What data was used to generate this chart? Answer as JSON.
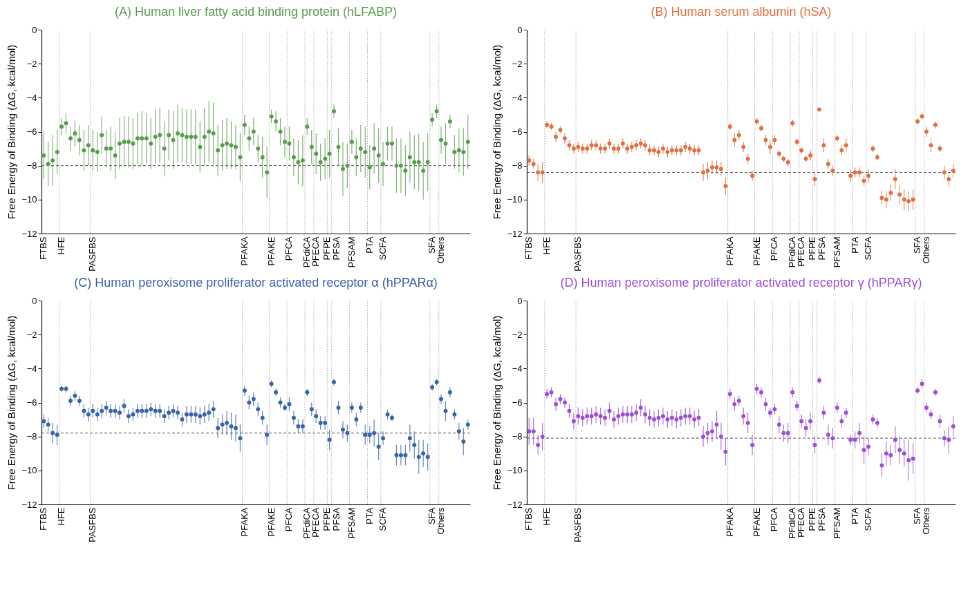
{
  "chart_data": [
    {
      "type": "scatter",
      "title": "(A) Human liver fatty acid binding protein (hLFABP)",
      "ylabel": "Free Energy of Binding (ΔG, kcal/mol)",
      "categories": [
        "FTBS",
        null,
        null,
        null,
        "HFE",
        null,
        null,
        null,
        null,
        null,
        null,
        "PASFBS",
        null,
        null,
        null,
        null,
        null,
        null,
        null,
        null,
        null,
        null,
        null,
        null,
        null,
        null,
        null,
        null,
        null,
        null,
        null,
        null,
        null,
        null,
        null,
        null,
        null,
        null,
        null,
        null,
        null,
        null,
        null,
        null,
        null,
        "PFAKA",
        null,
        null,
        null,
        null,
        null,
        "PFAKE",
        null,
        null,
        null,
        "PFCA",
        null,
        null,
        null,
        "PFdiCA",
        null,
        "PFECA",
        null,
        null,
        "PFPE",
        "PFSA",
        null,
        null,
        null,
        "PFSAM",
        null,
        null,
        null,
        "PTA",
        null,
        null,
        "SCFA",
        null,
        null,
        null,
        null,
        null,
        null,
        null,
        null,
        null,
        null,
        "SFA",
        null,
        "Others",
        null,
        null,
        null,
        null,
        null,
        null
      ],
      "series": [
        {
          "color": "#5b9b4f",
          "values": [
            -7.4,
            -7.9,
            -7.7,
            -7.2,
            -5.7,
            -5.5,
            -6.4,
            -6.1,
            -6.5,
            -7.1,
            -6.8,
            -7.1,
            -7.2,
            -6.2,
            -7.0,
            -7.0,
            -7.4,
            -6.7,
            -6.6,
            -6.6,
            -6.7,
            -6.4,
            -6.4,
            -6.4,
            -6.7,
            -6.3,
            -6.2,
            -7.0,
            -6.2,
            -6.5,
            -6.1,
            -6.2,
            -6.3,
            -6.3,
            -6.3,
            -6.9,
            -6.3,
            -6.0,
            -6.1,
            -7.1,
            -6.8,
            -6.7,
            -6.8,
            -6.9,
            -7.5,
            -5.6,
            -6.4,
            -6.0,
            -7.0,
            -7.5,
            -8.4,
            -5.1,
            -5.4,
            -6.0,
            -6.6,
            -6.7,
            -7.5,
            -7.8,
            -7.7,
            -5.7,
            -6.9,
            -7.3,
            -7.8,
            -7.6,
            -7.3,
            -4.8,
            -6.9,
            -8.2,
            -8.0,
            -6.6,
            -7.5,
            -7.0,
            -7.2,
            -8.1,
            -7.0,
            -7.4,
            -7.9,
            -6.7,
            -6.7,
            -8.0,
            -8.0,
            -8.3,
            -7.5,
            -7.8,
            -7.8,
            -8.3,
            -7.8,
            -5.3,
            -4.8,
            -6.5,
            -6.7,
            -5.4,
            -7.2,
            -7.1,
            -7.2,
            -6.6
          ],
          "errors": [
            1.4,
            1.3,
            1.5,
            1.3,
            0.5,
            0.6,
            0.7,
            0.8,
            0.9,
            1.2,
            1.2,
            1.2,
            1.2,
            1.1,
            1.1,
            1.3,
            1.4,
            1.5,
            1.5,
            1.5,
            1.5,
            1.5,
            1.6,
            1.5,
            1.5,
            1.6,
            1.6,
            1.6,
            1.5,
            1.7,
            1.7,
            1.6,
            1.6,
            1.6,
            1.6,
            1.5,
            1.7,
            1.8,
            1.8,
            1.5,
            1.5,
            1.5,
            1.4,
            1.3,
            1.4,
            0.6,
            0.7,
            0.8,
            0.8,
            1.2,
            1.5,
            0.4,
            0.6,
            0.8,
            0.9,
            1.0,
            1.1,
            1.3,
            1.5,
            0.5,
            1.0,
            1.2,
            1.1,
            1.2,
            1.4,
            0.4,
            1.1,
            1.6,
            1.3,
            0.7,
            1.1,
            1.4,
            1.5,
            1.3,
            1.5,
            1.6,
            1.3,
            1.0,
            1.0,
            1.6,
            1.6,
            1.5,
            1.5,
            1.6,
            1.7,
            1.7,
            1.7,
            0.4,
            0.4,
            0.8,
            1.2,
            0.4,
            1.0,
            1.3,
            1.4,
            1.6
          ]
        }
      ],
      "ylim": [
        -12,
        0
      ],
      "yticks": [
        0,
        -2,
        -4,
        -6,
        -8,
        -10,
        -12
      ],
      "grid": "x",
      "marker": "circle",
      "ref_lines": [
        {
          "axis": "y",
          "value": -8.0,
          "color": "#555555",
          "line_style": "dashed"
        }
      ]
    },
    {
      "type": "scatter",
      "title": "(B) Human serum albumin (hSA)",
      "ylabel": "Free Energy of Binding (ΔG, kcal/mol)",
      "categories": [
        "FTBS",
        null,
        null,
        null,
        "HFE",
        null,
        null,
        null,
        null,
        null,
        null,
        "PASFBS",
        null,
        null,
        null,
        null,
        null,
        null,
        null,
        null,
        null,
        null,
        null,
        null,
        null,
        null,
        null,
        null,
        null,
        null,
        null,
        null,
        null,
        null,
        null,
        null,
        null,
        null,
        null,
        null,
        null,
        null,
        null,
        null,
        null,
        "PFAKA",
        null,
        null,
        null,
        null,
        null,
        "PFAKE",
        null,
        null,
        null,
        "PFCA",
        null,
        null,
        null,
        "PFdiCA",
        null,
        "PFECA",
        null,
        null,
        "PFPE",
        "PFSA",
        null,
        null,
        null,
        "PFSAM",
        null,
        null,
        null,
        "PTA",
        null,
        null,
        "SCFA",
        null,
        null,
        null,
        null,
        null,
        null,
        null,
        null,
        null,
        null,
        "SFA",
        null,
        "Others",
        null,
        null,
        null,
        null,
        null,
        null
      ],
      "series": [
        {
          "color": "#e0703f",
          "values": [
            -7.7,
            -7.9,
            -8.4,
            -8.4,
            -5.6,
            -5.7,
            -6.3,
            -5.9,
            -6.4,
            -6.8,
            -7.0,
            -6.9,
            -7.0,
            -7.0,
            -6.8,
            -6.8,
            -7.0,
            -7.0,
            -6.7,
            -7.0,
            -7.0,
            -6.7,
            -7.0,
            -6.9,
            -6.8,
            -6.7,
            -6.8,
            -7.1,
            -7.1,
            -7.2,
            -7.0,
            -7.2,
            -7.1,
            -7.1,
            -7.1,
            -6.9,
            -7.0,
            -7.1,
            -7.1,
            -8.4,
            -8.3,
            -8.1,
            -8.1,
            -8.2,
            -9.2,
            -5.7,
            -6.5,
            -6.2,
            -6.9,
            -7.6,
            -8.6,
            -5.4,
            -5.8,
            -6.5,
            -6.9,
            -6.5,
            -7.3,
            -7.6,
            -7.8,
            -5.5,
            -6.6,
            -7.1,
            -7.6,
            -7.4,
            -8.8,
            -4.7,
            -6.8,
            -7.9,
            -8.3,
            -6.4,
            -7.1,
            -6.8,
            -8.6,
            -8.4,
            -8.4,
            -8.9,
            -8.6,
            -7.0,
            -7.5,
            -9.9,
            -10.0,
            -9.6,
            -8.8,
            -9.7,
            -10.0,
            -10.1,
            -10.0,
            -5.4,
            -5.1,
            -6.0,
            -6.8,
            -5.6,
            -7.0,
            -8.4,
            -8.8,
            -8.3
          ],
          "errors": [
            0.3,
            0.3,
            0.5,
            0.6,
            0.2,
            0.2,
            0.3,
            0.2,
            0.3,
            0.3,
            0.3,
            0.3,
            0.3,
            0.3,
            0.3,
            0.3,
            0.3,
            0.3,
            0.3,
            0.3,
            0.3,
            0.3,
            0.3,
            0.3,
            0.3,
            0.3,
            0.3,
            0.3,
            0.3,
            0.3,
            0.3,
            0.3,
            0.3,
            0.3,
            0.3,
            0.3,
            0.3,
            0.3,
            0.3,
            0.5,
            0.5,
            0.4,
            0.4,
            0.4,
            0.5,
            0.2,
            0.4,
            0.3,
            0.3,
            0.3,
            0.3,
            0.2,
            0.2,
            0.3,
            0.4,
            0.3,
            0.2,
            0.2,
            0.2,
            0.2,
            0.2,
            0.2,
            0.2,
            0.3,
            0.4,
            0.1,
            0.4,
            0.3,
            0.3,
            0.2,
            0.3,
            0.4,
            0.4,
            0.3,
            0.3,
            0.3,
            0.4,
            0.2,
            0.2,
            0.4,
            0.5,
            0.5,
            0.6,
            0.6,
            0.6,
            0.6,
            0.6,
            0.2,
            0.2,
            0.3,
            0.4,
            0.2,
            0.2,
            0.4,
            0.4,
            0.4
          ]
        }
      ],
      "ylim": [
        -12,
        0
      ],
      "yticks": [
        0,
        -2,
        -4,
        -6,
        -8,
        -10,
        -12
      ],
      "grid": "x",
      "marker": "circle",
      "ref_lines": [
        {
          "axis": "y",
          "value": -8.4,
          "color": "#555555",
          "line_style": "dashed"
        }
      ]
    },
    {
      "type": "scatter",
      "title": "(C) Human peroxisome proliferator activated receptor α (hPPARα)",
      "ylabel": "Free Energy of Binding (ΔG, kcal/mol)",
      "categories": [
        "FTBS",
        null,
        null,
        null,
        "HFE",
        null,
        null,
        null,
        null,
        null,
        null,
        "PASFBS",
        null,
        null,
        null,
        null,
        null,
        null,
        null,
        null,
        null,
        null,
        null,
        null,
        null,
        null,
        null,
        null,
        null,
        null,
        null,
        null,
        null,
        null,
        null,
        null,
        null,
        null,
        null,
        null,
        null,
        null,
        null,
        null,
        null,
        "PFAKA",
        null,
        null,
        null,
        null,
        null,
        "PFAKE",
        null,
        null,
        null,
        "PFCA",
        null,
        null,
        null,
        "PFdiCA",
        null,
        "PFECA",
        null,
        null,
        "PFPE",
        "PFSA",
        null,
        null,
        null,
        "PFSAM",
        null,
        null,
        null,
        "PTA",
        null,
        null,
        "SCFA",
        null,
        null,
        null,
        null,
        null,
        null,
        null,
        null,
        null,
        null,
        "SFA",
        null,
        "Others",
        null,
        null,
        null,
        null,
        null,
        null
      ],
      "series": [
        {
          "color": "#3a62a7",
          "values": [
            -7.1,
            -7.3,
            -7.8,
            -7.9,
            -5.2,
            -5.2,
            -5.9,
            -5.6,
            -5.9,
            -6.5,
            -6.7,
            -6.5,
            -6.7,
            -6.5,
            -6.3,
            -6.5,
            -6.5,
            -6.6,
            -6.2,
            -6.8,
            -6.7,
            -6.5,
            -6.5,
            -6.5,
            -6.4,
            -6.5,
            -6.5,
            -6.8,
            -6.6,
            -6.5,
            -6.6,
            -7.0,
            -6.7,
            -6.7,
            -6.7,
            -6.8,
            -6.7,
            -6.6,
            -6.4,
            -7.5,
            -7.3,
            -7.2,
            -7.4,
            -7.5,
            -8.1,
            -5.3,
            -6.0,
            -5.8,
            -6.4,
            -6.9,
            -7.9,
            -4.9,
            -5.4,
            -6.0,
            -6.3,
            -6.1,
            -6.9,
            -7.4,
            -7.4,
            -5.4,
            -6.4,
            -6.8,
            -7.2,
            -7.2,
            -8.2,
            -4.8,
            -6.3,
            -7.6,
            -7.8,
            -6.3,
            -7.0,
            -6.3,
            -7.9,
            -7.9,
            -7.8,
            -8.6,
            -8.1,
            -6.7,
            -6.9,
            -9.1,
            -9.1,
            -9.1,
            -8.1,
            -8.5,
            -9.2,
            -9.0,
            -9.2,
            -5.1,
            -4.8,
            -5.8,
            -6.5,
            -5.4,
            -6.7,
            -7.7,
            -8.3,
            -7.3
          ],
          "errors": [
            0.4,
            0.4,
            0.6,
            0.6,
            0.2,
            0.2,
            0.3,
            0.3,
            0.3,
            0.4,
            0.4,
            0.4,
            0.4,
            0.4,
            0.4,
            0.4,
            0.4,
            0.4,
            0.4,
            0.4,
            0.4,
            0.4,
            0.4,
            0.4,
            0.4,
            0.4,
            0.4,
            0.4,
            0.4,
            0.4,
            0.4,
            0.4,
            0.5,
            0.5,
            0.5,
            0.5,
            0.5,
            0.5,
            0.5,
            0.6,
            0.6,
            0.7,
            0.8,
            0.8,
            0.8,
            0.3,
            0.4,
            0.4,
            0.4,
            0.4,
            0.6,
            0.2,
            0.2,
            0.3,
            0.2,
            0.4,
            0.4,
            0.4,
            0.4,
            0.2,
            0.4,
            0.4,
            0.4,
            0.4,
            0.6,
            0.2,
            0.4,
            0.5,
            0.5,
            0.3,
            0.4,
            0.3,
            0.6,
            0.5,
            0.8,
            0.8,
            0.4,
            0.3,
            0.2,
            0.6,
            0.6,
            0.6,
            0.8,
            0.8,
            1.0,
            0.8,
            0.8,
            0.2,
            0.2,
            0.3,
            0.6,
            0.3,
            0.3,
            0.5,
            0.8,
            0.3
          ]
        }
      ],
      "ylim": [
        -12,
        0
      ],
      "yticks": [
        0,
        -2,
        -4,
        -6,
        -8,
        -10,
        -12
      ],
      "grid": "x",
      "marker": "circle",
      "ref_lines": [
        {
          "axis": "y",
          "value": -7.8,
          "color": "#555555",
          "line_style": "dashed"
        }
      ]
    },
    {
      "type": "scatter",
      "title": "(D) Human peroxisome proliferator activated receptor γ  (hPPARγ)",
      "ylabel": "Free Energy of Binding (ΔG, kcal/mol)",
      "categories": [
        "FTBS",
        null,
        null,
        null,
        "HFE",
        null,
        null,
        null,
        null,
        null,
        null,
        "PASFBS",
        null,
        null,
        null,
        null,
        null,
        null,
        null,
        null,
        null,
        null,
        null,
        null,
        null,
        null,
        null,
        null,
        null,
        null,
        null,
        null,
        null,
        null,
        null,
        null,
        null,
        null,
        null,
        null,
        null,
        null,
        null,
        null,
        null,
        "PFAKA",
        null,
        null,
        null,
        null,
        null,
        "PFAKE",
        null,
        null,
        null,
        "PFCA",
        null,
        null,
        null,
        "PFdiCA",
        null,
        "PFECA",
        null,
        null,
        "PFPE",
        "PFSA",
        null,
        null,
        null,
        "PFSAM",
        null,
        null,
        null,
        "PTA",
        null,
        null,
        "SCFA",
        null,
        null,
        null,
        null,
        null,
        null,
        null,
        null,
        null,
        null,
        "SFA",
        null,
        "Others",
        null,
        null,
        null,
        null,
        null,
        null
      ],
      "series": [
        {
          "color": "#9b4fd6",
          "values": [
            -7.7,
            -7.7,
            -8.5,
            -8.0,
            -5.5,
            -5.4,
            -6.1,
            -5.8,
            -6.0,
            -6.5,
            -7.1,
            -6.8,
            -6.9,
            -6.8,
            -6.8,
            -6.7,
            -6.8,
            -6.9,
            -6.5,
            -7.0,
            -6.8,
            -6.7,
            -6.7,
            -6.7,
            -6.6,
            -6.3,
            -6.7,
            -6.9,
            -7.0,
            -6.9,
            -6.8,
            -7.0,
            -6.9,
            -7.0,
            -6.9,
            -6.8,
            -6.8,
            -7.0,
            -6.9,
            -8.0,
            -7.8,
            -7.7,
            -7.3,
            -8.0,
            -8.9,
            -5.5,
            -6.1,
            -5.9,
            -6.8,
            -7.2,
            -8.5,
            -5.2,
            -5.4,
            -6.1,
            -6.6,
            -6.4,
            -7.3,
            -7.8,
            -7.8,
            -5.4,
            -6.2,
            -7.1,
            -7.5,
            -7.1,
            -8.5,
            -4.7,
            -6.6,
            -7.9,
            -8.1,
            -6.3,
            -7.1,
            -6.6,
            -8.2,
            -8.2,
            -7.8,
            -8.8,
            -8.6,
            -7.0,
            -7.2,
            -9.7,
            -9.0,
            -9.1,
            -8.2,
            -8.8,
            -9.0,
            -9.4,
            -9.3,
            -5.3,
            -4.9,
            -6.3,
            -6.7,
            -5.4,
            -7.1,
            -8.1,
            -8.2,
            -7.4
          ],
          "errors": [
            0.8,
            0.8,
            0.6,
            0.8,
            0.3,
            0.3,
            0.4,
            0.3,
            0.3,
            0.4,
            0.5,
            0.5,
            0.5,
            0.5,
            0.5,
            0.5,
            0.5,
            0.5,
            0.5,
            0.5,
            0.5,
            0.5,
            0.5,
            0.5,
            0.5,
            0.5,
            0.5,
            0.5,
            0.5,
            0.5,
            0.5,
            0.5,
            0.5,
            0.5,
            0.5,
            0.5,
            0.5,
            0.5,
            0.5,
            0.6,
            0.6,
            0.6,
            0.8,
            0.8,
            0.8,
            0.3,
            0.4,
            0.3,
            0.5,
            0.6,
            0.6,
            0.3,
            0.3,
            0.4,
            0.3,
            0.3,
            0.5,
            0.5,
            0.6,
            0.3,
            0.3,
            0.4,
            0.5,
            0.5,
            0.5,
            0.2,
            0.4,
            0.6,
            0.6,
            0.3,
            0.4,
            0.3,
            0.3,
            0.5,
            0.6,
            0.8,
            0.5,
            0.3,
            0.3,
            0.7,
            0.7,
            0.6,
            0.8,
            0.8,
            0.8,
            1.2,
            0.9,
            0.2,
            0.3,
            0.3,
            0.3,
            0.2,
            0.4,
            0.5,
            0.8,
            0.6
          ]
        }
      ],
      "ylim": [
        -12,
        0
      ],
      "yticks": [
        0,
        -2,
        -4,
        -6,
        -8,
        -10,
        -12
      ],
      "grid": "x",
      "marker": "circle",
      "ref_lines": [
        {
          "axis": "y",
          "value": -8.1,
          "color": "#555555",
          "line_style": "dashed"
        }
      ]
    }
  ]
}
